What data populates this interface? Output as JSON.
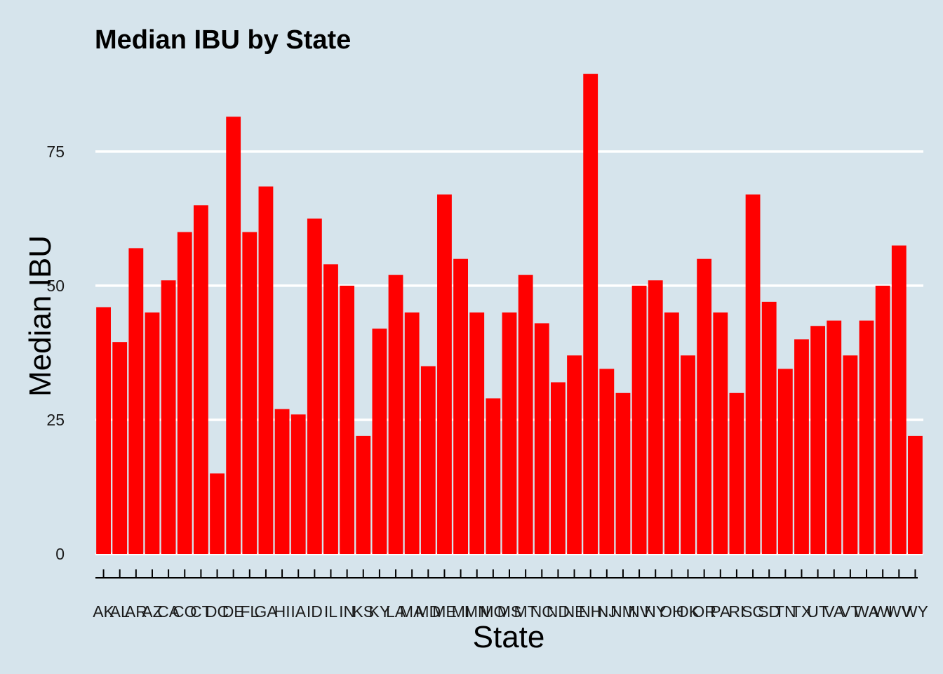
{
  "colors": {
    "background": "#d6e4ec",
    "bar": "#ff0000",
    "grid": "#ffffff",
    "axis": "#000000"
  },
  "chart_data": {
    "type": "bar",
    "title": "Median IBU by State",
    "xlabel": "State",
    "ylabel": "Median IBU",
    "ylim": [
      0,
      92
    ],
    "yticks": [
      0,
      25,
      50,
      75
    ],
    "grid": "horizontal",
    "legend": "none",
    "categories": [
      "AK",
      "AL",
      "AR",
      "AZ",
      "CA",
      "CO",
      "CT",
      "DC",
      "DE",
      "FL",
      "GA",
      "HI",
      "IA",
      "ID",
      "IL",
      "IN",
      "KS",
      "KY",
      "LA",
      "MA",
      "MD",
      "ME",
      "MI",
      "MN",
      "MO",
      "MS",
      "MT",
      "NC",
      "ND",
      "NE",
      "NH",
      "NJ",
      "NM",
      "NV",
      "NY",
      "OH",
      "OK",
      "OR",
      "PA",
      "RI",
      "SC",
      "SD",
      "TN",
      "TX",
      "UT",
      "VA",
      "VT",
      "WA",
      "WI",
      "WV",
      "WY"
    ],
    "values": [
      46,
      39.5,
      57,
      45,
      51,
      60,
      65,
      15,
      81.5,
      60,
      68.5,
      27,
      26,
      62.5,
      54,
      50,
      22,
      42,
      52,
      45,
      35,
      67,
      55,
      45,
      29,
      45,
      52,
      43,
      32,
      37,
      89.5,
      34.5,
      30,
      50,
      51,
      45,
      37,
      55,
      45,
      30,
      67,
      47,
      34.5,
      40,
      42.5,
      43.5,
      37,
      43.5,
      50,
      57.5,
      22
    ]
  }
}
